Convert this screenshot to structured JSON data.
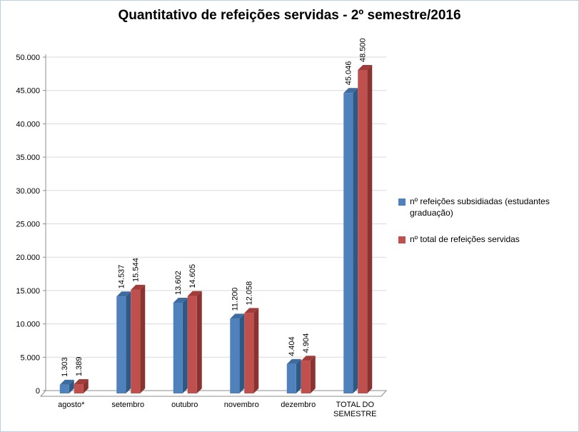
{
  "title": "Quantitativo de refeições servidas - 2º semestre/2016",
  "chart_data": {
    "type": "bar",
    "style": "3d-clustered-column",
    "title": "Quantitativo de refeições servidas - 2º semestre/2016",
    "categories": [
      "agosto*",
      "setembro",
      "outubro",
      "novembro",
      "dezembro",
      "TOTAL DO\nSEMESTRE"
    ],
    "series": [
      {
        "name": "nº refeições subsidiadas (estudantes graduação)",
        "color": "#4F81BD",
        "top_color": "#3F6CA0",
        "side_color": "#2E5984",
        "values": [
          1303,
          14537,
          13602,
          11200,
          4404,
          45046
        ],
        "labels": [
          "1.303",
          "14.537",
          "13.602",
          "11.200",
          "4.404",
          "45.046"
        ]
      },
      {
        "name": "nº total de refeições servidas",
        "color": "#C0504D",
        "top_color": "#A03C3A",
        "side_color": "#8A3331",
        "values": [
          1389,
          15544,
          14605,
          12058,
          4904,
          48500
        ],
        "labels": [
          "1.389",
          "15.544",
          "14.605",
          "12.058",
          "4.904",
          "48.500"
        ]
      }
    ],
    "ylim": [
      0,
      50000
    ],
    "ytick_step": 5000,
    "ytick_labels": [
      "0",
      "5.000",
      "10.000",
      "15.000",
      "20.000",
      "25.000",
      "30.000",
      "35.000",
      "40.000",
      "45.000",
      "50.000"
    ],
    "grid": true,
    "legend_position": "right",
    "grid_color": "#d9d9d9",
    "axis_color": "#8c8c8c"
  }
}
